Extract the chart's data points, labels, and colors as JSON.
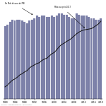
{
  "years": [
    1980,
    1981,
    1982,
    1983,
    1984,
    1985,
    1986,
    1987,
    1988,
    1989,
    1990,
    1991,
    1992,
    1993,
    1994,
    1995,
    1996,
    1997,
    1998,
    1999,
    2000,
    2001,
    2002,
    2003,
    2004,
    2005,
    2006,
    2007,
    2008,
    2009,
    2010,
    2011,
    2012,
    2013,
    2014,
    2015,
    2016,
    2017,
    2018,
    2019
  ],
  "bar_values": [
    5.9,
    6.0,
    6.2,
    6.4,
    6.3,
    6.4,
    6.4,
    6.3,
    6.2,
    6.1,
    6.3,
    6.4,
    6.5,
    6.7,
    6.6,
    6.7,
    6.7,
    6.6,
    6.6,
    6.7,
    6.6,
    6.7,
    6.9,
    6.9,
    6.8,
    6.8,
    6.6,
    6.5,
    6.5,
    6.9,
    6.8,
    6.7,
    6.7,
    6.7,
    6.6,
    6.5,
    6.5,
    6.4,
    6.4,
    6.5
  ],
  "line_values": [
    88,
    92,
    98,
    103,
    106,
    110,
    115,
    118,
    122,
    125,
    131,
    135,
    138,
    141,
    143,
    148,
    151,
    153,
    158,
    163,
    166,
    172,
    179,
    184,
    187,
    191,
    194,
    198,
    203,
    208,
    212,
    215,
    217,
    218,
    219,
    220,
    223,
    227,
    231,
    237
  ],
  "bar_color": "#7b7fa8",
  "bar_edgecolor": "#9496b8",
  "line_color": "#111111",
  "annotation_left": "En Mds d’euros de PIB",
  "annotation_right": "Mds aux prix 2017",
  "ylim_bar": [
    5.0,
    7.8
  ],
  "ylim_line": [
    60,
    280
  ],
  "tick_years": [
    1980,
    1984,
    1988,
    1992,
    1996,
    2000,
    2004,
    2008,
    2012,
    2016,
    2019
  ],
  "background_color": "#ffffff",
  "note_text": "Sources : calculs auteur"
}
